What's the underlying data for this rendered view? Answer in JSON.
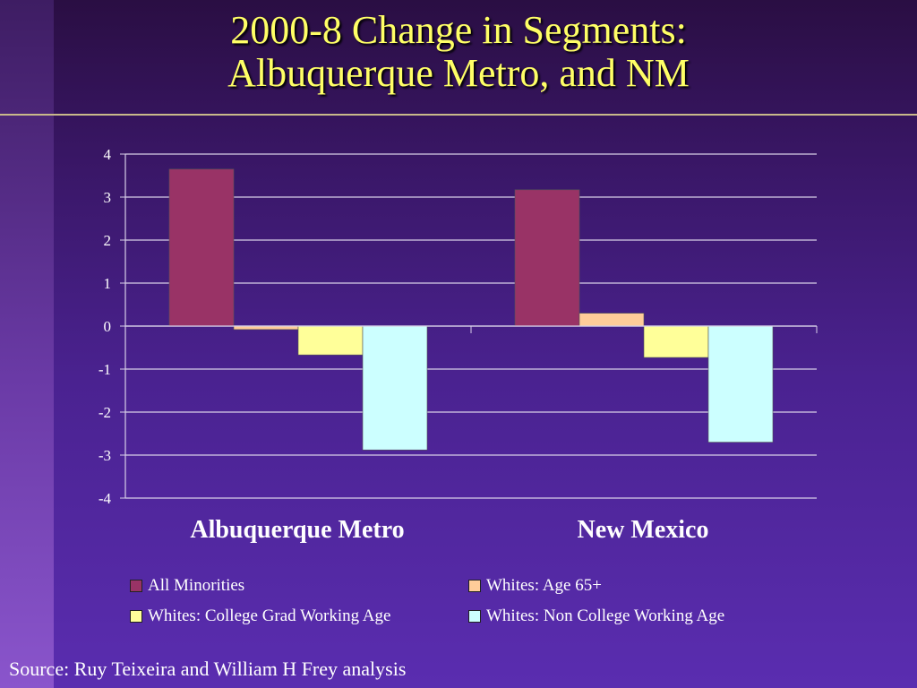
{
  "title": {
    "line1": "2000-8 Change in  Segments:",
    "line2": "Albuquerque Metro, and NM"
  },
  "source": "Source: Ruy Teixeira and William H  Frey analysis",
  "colors": {
    "accent_title": "#ffff66"
  },
  "chart_data": {
    "type": "bar",
    "categories": [
      "Albuquerque Metro",
      "New Mexico"
    ],
    "series": [
      {
        "name": "All Minorities",
        "color": "#993366",
        "values": [
          3.65,
          3.17
        ]
      },
      {
        "name": "Whites: Age 65+",
        "color": "#ffcc99",
        "values": [
          -0.08,
          0.3
        ]
      },
      {
        "name": "Whites:  College  Grad Working Age",
        "color": "#ffff99",
        "values": [
          -0.67,
          -0.73
        ]
      },
      {
        "name": "Whites: Non College Working Age",
        "color": "#ccffff",
        "values": [
          -2.88,
          -2.7
        ]
      }
    ],
    "ylim": [
      -4,
      4
    ],
    "yticks": [
      "4",
      "3",
      "2",
      "1",
      "0",
      "-1",
      "-2",
      "-3",
      "-4"
    ],
    "ytick_values": [
      4,
      3,
      2,
      1,
      0,
      -1,
      -2,
      -3,
      -4
    ],
    "grid": true,
    "legend_position": "bottom"
  }
}
